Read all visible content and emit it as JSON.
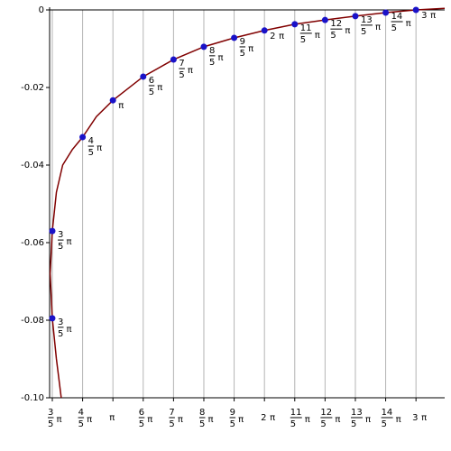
{
  "chart_data": {
    "type": "parametric",
    "xlim": [
      1.829,
      10.02
    ],
    "ylim": [
      -0.1,
      0
    ],
    "yticks": [
      0,
      -0.02,
      -0.04,
      -0.06,
      -0.08,
      {
        "value": -0.1,
        "label": "-0.10"
      }
    ],
    "xticks": [
      {
        "value": 1.884956,
        "label": {
          "num": "3",
          "den": "5",
          "unit": "π"
        }
      },
      {
        "value": 2.513274,
        "label": {
          "num": "4",
          "den": "5",
          "unit": "π"
        }
      },
      {
        "value": 3.141593,
        "label": {
          "unit": "π"
        }
      },
      {
        "value": 3.769911,
        "label": {
          "num": "6",
          "den": "5",
          "unit": "π"
        }
      },
      {
        "value": 4.39823,
        "label": {
          "num": "7",
          "den": "5",
          "unit": "π"
        }
      },
      {
        "value": 5.026548,
        "label": {
          "num": "8",
          "den": "5",
          "unit": "π"
        }
      },
      {
        "value": 5.654867,
        "label": {
          "num": "9",
          "den": "5",
          "unit": "π"
        }
      },
      {
        "value": 6.283185,
        "label": {
          "coef": "2",
          "unit": "π"
        }
      },
      {
        "value": 6.911504,
        "label": {
          "num": "11",
          "den": "5",
          "unit": "π"
        }
      },
      {
        "value": 7.539822,
        "label": {
          "num": "12",
          "den": "5",
          "unit": "π"
        }
      },
      {
        "value": 8.168141,
        "label": {
          "num": "13",
          "den": "5",
          "unit": "π"
        }
      },
      {
        "value": 8.796459,
        "label": {
          "num": "14",
          "den": "5",
          "unit": "π"
        }
      },
      {
        "value": 9.424778,
        "label": {
          "coef": "3",
          "unit": "π"
        }
      }
    ],
    "grid": "vertical",
    "grid_color": "#b4b4b4",
    "curve": {
      "color": "#800000",
      "x": [
        2.07,
        1.97,
        1.885,
        1.84,
        1.885,
        1.97,
        2.1,
        2.3,
        2.513,
        2.8,
        3.142,
        3.77,
        4.398,
        5.027,
        5.655,
        6.283,
        6.912,
        7.54,
        8.168,
        8.796,
        9.425,
        10.02
      ],
      "y": [
        -0.1,
        -0.09,
        -0.0795,
        -0.068,
        -0.057,
        -0.047,
        -0.04,
        -0.036,
        -0.0328,
        -0.0275,
        -0.0233,
        -0.0172,
        -0.0128,
        -0.0095,
        -0.0072,
        -0.0053,
        -0.0037,
        -0.0026,
        -0.0016,
        -0.0007,
        0,
        0.0004
      ]
    },
    "points": {
      "color": "#1a12c8",
      "x": [
        1.884956,
        1.884956,
        2.513274,
        3.141593,
        3.769911,
        4.39823,
        5.026548,
        5.654867,
        6.283185,
        6.911504,
        7.539822,
        8.168141,
        8.796459,
        9.424778
      ],
      "y": [
        -0.0795,
        -0.057,
        -0.0328,
        -0.0233,
        -0.0172,
        -0.0128,
        -0.0095,
        -0.0072,
        -0.0053,
        -0.0037,
        -0.0026,
        -0.0016,
        -0.0007,
        0
      ],
      "labels": [
        {
          "num": "3",
          "den": "5",
          "unit": "π"
        },
        {
          "num": "3",
          "den": "5",
          "unit": "π"
        },
        {
          "num": "4",
          "den": "5",
          "unit": "π"
        },
        {
          "unit": "π"
        },
        {
          "num": "6",
          "den": "5",
          "unit": "π"
        },
        {
          "num": "7",
          "den": "5",
          "unit": "π"
        },
        {
          "num": "8",
          "den": "5",
          "unit": "π"
        },
        {
          "num": "9",
          "den": "5",
          "unit": "π"
        },
        {
          "coef": "2",
          "unit": "π"
        },
        {
          "num": "11",
          "den": "5",
          "unit": "π"
        },
        {
          "num": "12",
          "den": "5",
          "unit": "π"
        },
        {
          "num": "13",
          "den": "5",
          "unit": "π"
        },
        {
          "num": "14",
          "den": "5",
          "unit": "π"
        },
        {
          "coef": "3",
          "unit": "π"
        }
      ]
    }
  }
}
